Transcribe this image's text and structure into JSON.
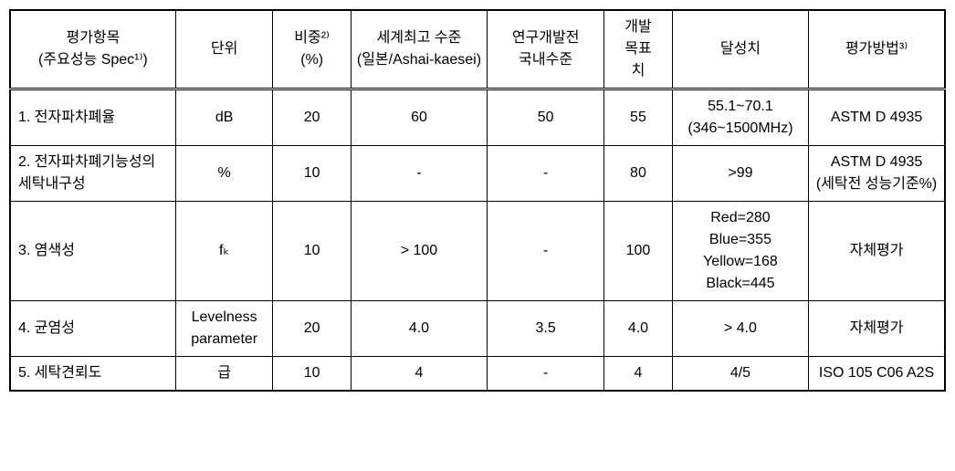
{
  "table": {
    "columns": {
      "item": "평가항목\n(주요성능 Spec¹⁾)",
      "unit": "단위",
      "weight": "비중²⁾\n(%)",
      "world_best": "세계최고 수준\n(일본/Ashai-kaesei)",
      "domestic": "연구개발전\n국내수준",
      "dev_target": "개발\n목표\n치",
      "achieved": "달성치",
      "method": "평가방법³⁾"
    },
    "rows": [
      {
        "item": "1. 전자파차폐율",
        "unit": "dB",
        "weight": "20",
        "world_best": "60",
        "domestic": "50",
        "dev_target": "55",
        "achieved": "55.1~70.1\n(346~1500MHz)",
        "method": "ASTM D 4935"
      },
      {
        "item": "2. 전자파차폐기능성의   세탁내구성",
        "unit": "%",
        "weight": "10",
        "world_best": "-",
        "domestic": "-",
        "dev_target": "80",
        "achieved": ">99",
        "method": "ASTM D 4935\n(세탁전 성능기준%)"
      },
      {
        "item": "3. 염색성",
        "unit": "fₖ",
        "weight": "10",
        "world_best": "> 100",
        "domestic": "-",
        "dev_target": "100",
        "achieved": "Red=280\nBlue=355\nYellow=168\nBlack=445",
        "method": "자체평가"
      },
      {
        "item": "4. 균염성",
        "unit": "Levelness parameter",
        "weight": "20",
        "world_best": "4.0",
        "domestic": "3.5",
        "dev_target": "4.0",
        "achieved": "> 4.0",
        "method": "자체평가"
      },
      {
        "item": "5. 세탁견뢰도",
        "unit": "급",
        "weight": "10",
        "world_best": "4",
        "domestic": "-",
        "dev_target": "4",
        "achieved": "4/5",
        "method": "ISO 105 C06 A2S"
      }
    ]
  }
}
